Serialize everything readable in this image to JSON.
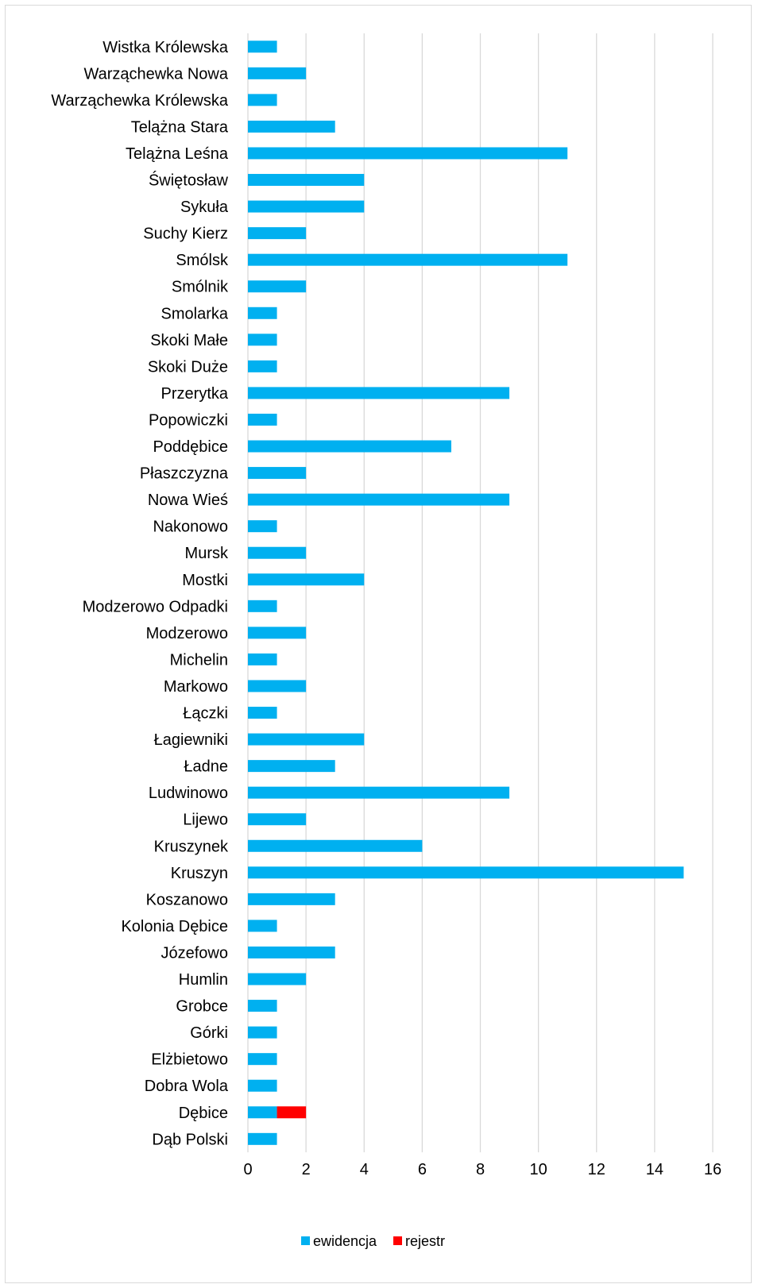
{
  "chart_data": {
    "type": "bar",
    "orientation": "horizontal",
    "stacked": true,
    "categories": [
      "Wistka Królewska",
      "Warząchewka Nowa",
      "Warząchewka Królewska",
      "Telążna Stara",
      "Telążna Leśna",
      "Świętosław",
      "Sykuła",
      "Suchy Kierz",
      "Smólsk",
      "Smólnik",
      "Smolarka",
      "Skoki Małe",
      "Skoki Duże",
      "Przerytka",
      "Popowiczki",
      "Poddębice",
      "Płaszczyzna",
      "Nowa Wieś",
      "Nakonowo",
      "Mursk",
      "Mostki",
      "Modzerowo Odpadki",
      "Modzerowo",
      "Michelin",
      "Markowo",
      "Łączki",
      "Łagiewniki",
      "Ładne",
      "Ludwinowo",
      "Lijewo",
      "Kruszynek",
      "Kruszyn",
      "Koszanowo",
      "Kolonia Dębice",
      "Józefowo",
      "Humlin",
      "Grobce",
      "Górki",
      "Elżbietowo",
      "Dobra Wola",
      "Dębice",
      "Dąb Polski"
    ],
    "series": [
      {
        "name": "ewidencja",
        "color": "#00b0f0",
        "values": [
          1,
          2,
          1,
          3,
          11,
          4,
          4,
          2,
          11,
          2,
          1,
          1,
          1,
          9,
          1,
          7,
          2,
          9,
          1,
          2,
          4,
          1,
          2,
          1,
          2,
          1,
          4,
          3,
          9,
          2,
          6,
          15,
          3,
          1,
          3,
          2,
          1,
          1,
          1,
          1,
          1,
          1
        ]
      },
      {
        "name": "rejestr",
        "color": "#ff0000",
        "values": [
          0,
          0,
          0,
          0,
          0,
          0,
          0,
          0,
          0,
          0,
          0,
          0,
          0,
          0,
          0,
          0,
          0,
          0,
          0,
          0,
          0,
          0,
          0,
          0,
          0,
          0,
          0,
          0,
          0,
          0,
          0,
          0,
          0,
          0,
          0,
          0,
          0,
          0,
          0,
          0,
          1,
          0
        ]
      }
    ],
    "xlim": [
      0,
      16
    ],
    "ticks": [
      0,
      2,
      4,
      6,
      8,
      10,
      12,
      14,
      16
    ],
    "grid": "vertical",
    "legend": "bottom",
    "title": "",
    "xlabel": "",
    "ylabel": ""
  }
}
